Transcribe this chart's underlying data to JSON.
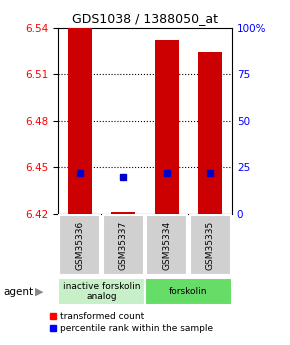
{
  "title": "GDS1038 / 1388050_at",
  "samples": [
    "GSM35336",
    "GSM35337",
    "GSM35334",
    "GSM35335"
  ],
  "bar_values": [
    6.54,
    6.421,
    6.532,
    6.524
  ],
  "bar_base": 6.42,
  "percentile_values": [
    22,
    20,
    22,
    22
  ],
  "ylim": [
    6.42,
    6.54
  ],
  "ylim_pct": [
    0,
    100
  ],
  "yticks_left": [
    6.42,
    6.45,
    6.48,
    6.51,
    6.54
  ],
  "yticks_right": [
    0,
    25,
    50,
    75,
    100
  ],
  "bar_color": "#cc0000",
  "dot_color": "#0000cc",
  "bar_width": 0.55,
  "title_fontsize": 9,
  "tick_fontsize": 7.5,
  "legend_red": "transformed count",
  "legend_blue": "percentile rank within the sample",
  "group_info": [
    {
      "label": "inactive forskolin\nanalog",
      "span": [
        0,
        2
      ],
      "color": "#c8f0c8"
    },
    {
      "label": "forskolin",
      "span": [
        2,
        4
      ],
      "color": "#66dd66"
    }
  ]
}
